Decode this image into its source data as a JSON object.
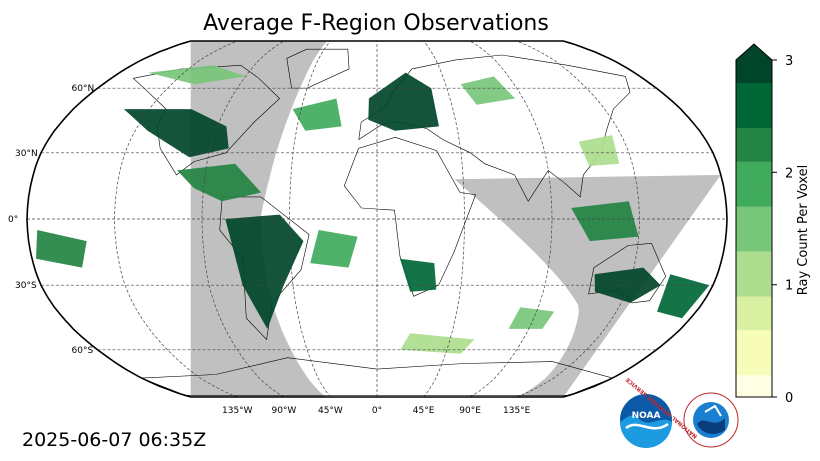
{
  "title": "Average F-Region Observations",
  "timestamp": "2025-06-07 06:35Z",
  "map": {
    "projection": "Robinson",
    "ocean_color": "#ffffff",
    "nightside_color": "#c0c0c0",
    "gridline_style": "dashed",
    "lat_labels": [
      "60°N",
      "30°N",
      "0°",
      "30°S",
      "60°S"
    ],
    "lon_labels": [
      "135°W",
      "90°W",
      "45°W",
      "0°",
      "45°E",
      "90°E",
      "135°E"
    ]
  },
  "colorbar": {
    "label": "Ray Count Per Voxel",
    "ticks": [
      "0",
      "1",
      "2",
      "3"
    ],
    "min": 0,
    "max": 3,
    "extend": "max",
    "colormap": [
      "#ffffe5",
      "#f7fcb9",
      "#d9f0a3",
      "#addd8e",
      "#78c679",
      "#41ab5d",
      "#238443",
      "#006837",
      "#004529"
    ]
  },
  "observations": [
    {
      "region": "north-america",
      "value": 3
    },
    {
      "region": "alaska-canada-arctic",
      "value": 1.6
    },
    {
      "region": "central-america",
      "value": 2.4
    },
    {
      "region": "south-america",
      "value": 3
    },
    {
      "region": "south-atlantic",
      "value": 1.8
    },
    {
      "region": "europe",
      "value": 3
    },
    {
      "region": "north-atlantic",
      "value": 2
    },
    {
      "region": "siberia",
      "value": 1.4
    },
    {
      "region": "southern-africa",
      "value": 2.6
    },
    {
      "region": "maritime-asia",
      "value": 2.3
    },
    {
      "region": "australia",
      "value": 2.9
    },
    {
      "region": "tasman",
      "value": 2.6
    },
    {
      "region": "eastern-pacific",
      "value": 2.2
    },
    {
      "region": "southern-ocean",
      "value": 1.2
    },
    {
      "region": "indian-ocean",
      "value": 1.5
    },
    {
      "region": "east-asia",
      "value": 1.1
    }
  ],
  "logos": {
    "noaa": "NOAA",
    "nws": "NATIONAL WEATHER SERVICE"
  }
}
